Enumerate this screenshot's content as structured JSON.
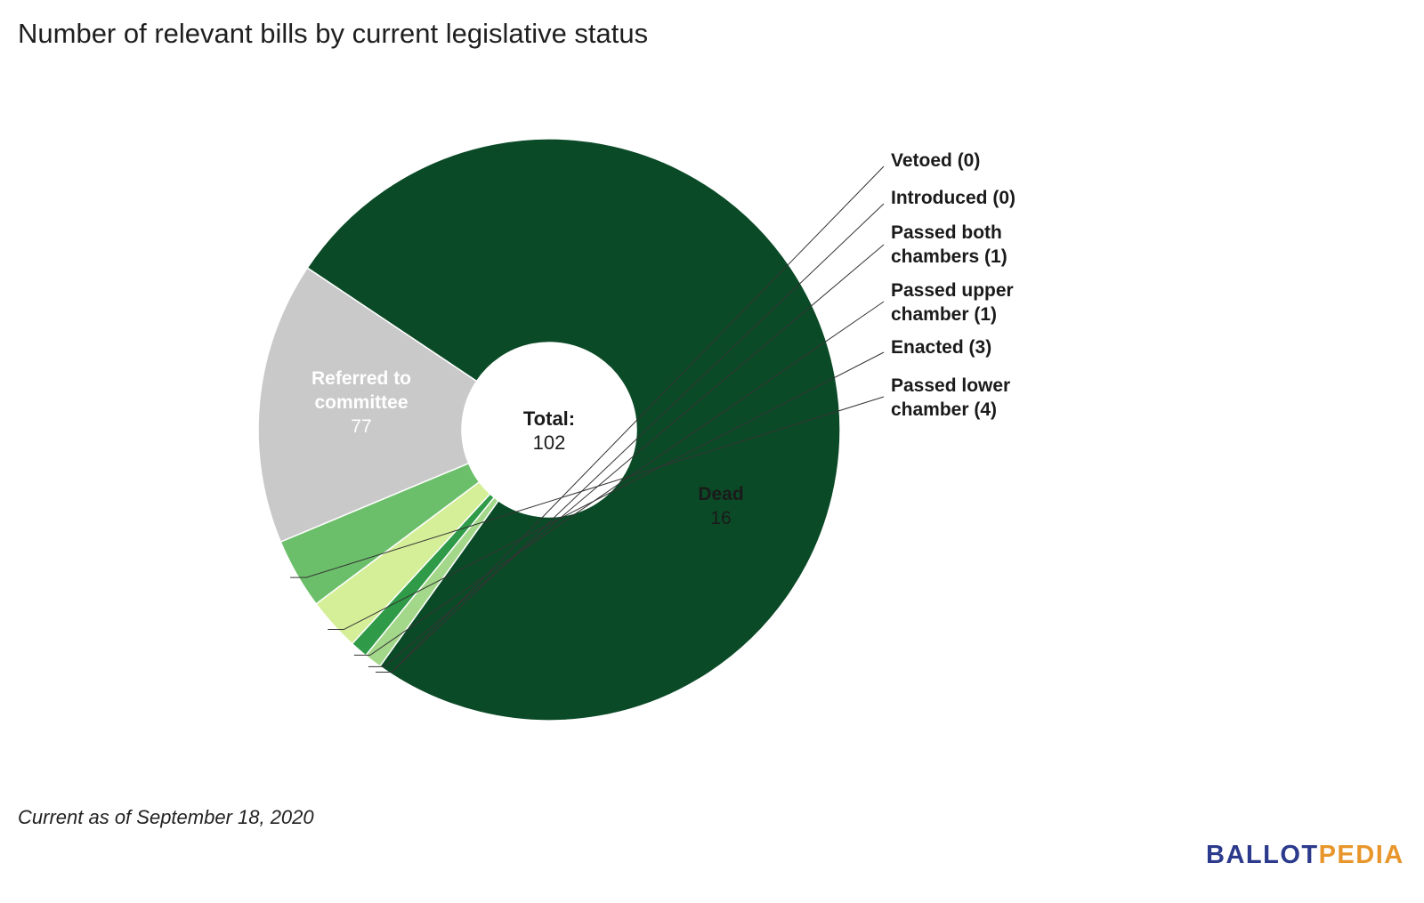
{
  "title": "Number of relevant bills by current legislative status",
  "footnote": "Current as of September 18, 2020",
  "logo": {
    "part1": "BALLOT",
    "part2": "PEDIA",
    "color1": "#2b3a8c",
    "color2": "#e8962b"
  },
  "chart_data": {
    "type": "pie",
    "subtype": "donut",
    "title": "Number of relevant bills by current legislative status",
    "center_label": "Total:",
    "total": 102,
    "slices": [
      {
        "label": "Referred to committee",
        "value": 77,
        "color": "#0b4a27",
        "label_position": "inside",
        "label_color": "#ffffff"
      },
      {
        "label": "Vetoed",
        "value": 0,
        "color": "#c8e6a8",
        "label_position": "outside",
        "outside_text": "Vetoed (0)"
      },
      {
        "label": "Introduced",
        "value": 0,
        "color": "#b2dc95",
        "label_position": "outside",
        "outside_text": "Introduced (0)"
      },
      {
        "label": "Passed both chambers",
        "value": 1,
        "color": "#a3d88a",
        "label_position": "outside",
        "outside_text": [
          "Passed both",
          "chambers (1)"
        ]
      },
      {
        "label": "Passed upper chamber",
        "value": 1,
        "color": "#2f9a47",
        "label_position": "outside",
        "outside_text": [
          "Passed upper",
          "chamber (1)"
        ]
      },
      {
        "label": "Enacted",
        "value": 3,
        "color": "#d5ee98",
        "label_position": "outside",
        "outside_text": "Enacted (3)"
      },
      {
        "label": "Passed lower chamber",
        "value": 4,
        "color": "#6cbf6a",
        "label_position": "outside",
        "outside_text": [
          "Passed lower",
          "chamber (4)"
        ]
      },
      {
        "label": "Dead",
        "value": 16,
        "color": "#c9c9c9",
        "label_position": "inside",
        "label_color": "#1a1a1a"
      }
    ],
    "inside_labels": [
      {
        "slice": 0,
        "lines": [
          "Referred to",
          "committee"
        ],
        "value": "77"
      },
      {
        "slice": 7,
        "lines": [
          "Dead"
        ],
        "value": "16"
      }
    ]
  }
}
